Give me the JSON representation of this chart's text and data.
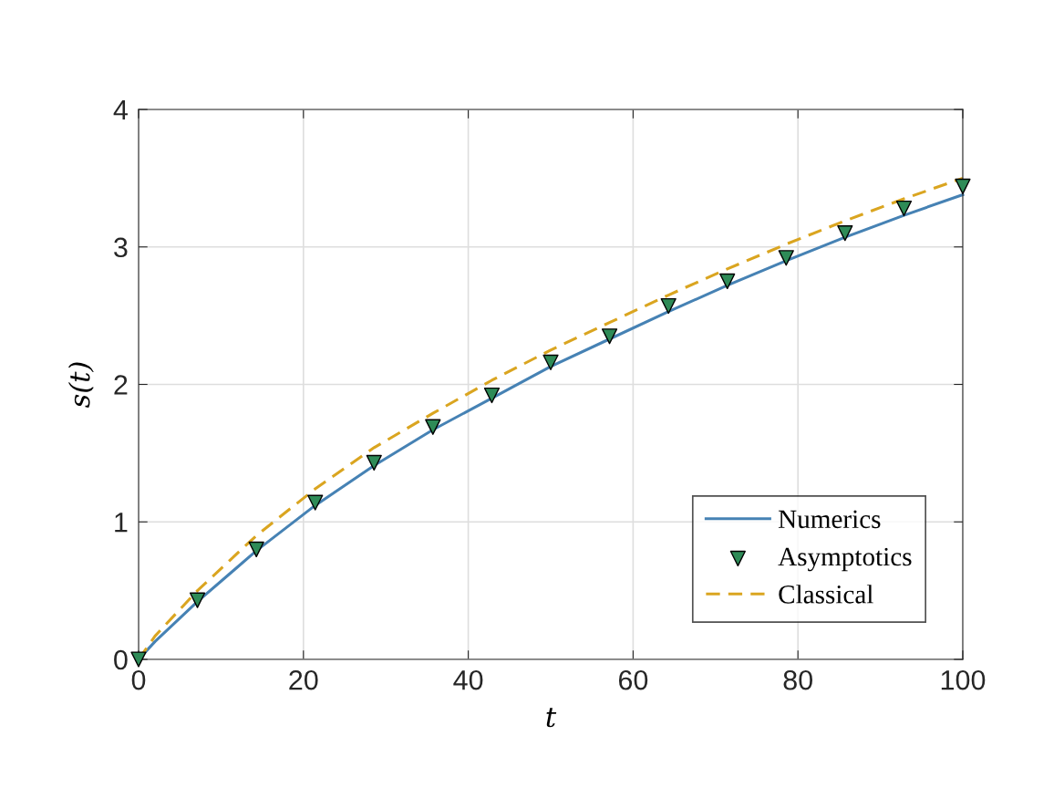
{
  "chart_data": {
    "type": "line",
    "xlabel": "t",
    "ylabel": "s(t)",
    "xlim": [
      0,
      100
    ],
    "ylim": [
      0,
      4
    ],
    "xticks": [
      0,
      20,
      40,
      60,
      80,
      100
    ],
    "yticks": [
      0,
      1,
      2,
      3,
      4
    ],
    "grid": true,
    "legend": "bottom right",
    "series": [
      {
        "name": "Numerics",
        "color": "#4682b4",
        "line_style": "solid",
        "marker": "none",
        "x": [
          0,
          2,
          7.14,
          14.29,
          21.43,
          28.57,
          35.71,
          42.86,
          50,
          57.14,
          64.29,
          71.43,
          78.57,
          85.71,
          92.86,
          100
        ],
        "values": [
          0,
          0.13,
          0.42,
          0.79,
          1.12,
          1.41,
          1.67,
          1.9,
          2.13,
          2.33,
          2.53,
          2.72,
          2.9,
          3.07,
          3.23,
          3.38
        ]
      },
      {
        "name": "Asymptotics",
        "type": "scatter",
        "color": "#2e8b57",
        "marker": "triangle",
        "x": [
          0,
          7.14,
          14.29,
          21.43,
          28.57,
          35.71,
          42.86,
          50,
          57.14,
          64.29,
          71.43,
          78.57,
          85.71,
          92.86,
          100
        ],
        "values": [
          0,
          0.43,
          0.8,
          1.14,
          1.43,
          1.69,
          1.92,
          2.16,
          2.35,
          2.57,
          2.75,
          2.92,
          3.1,
          3.28,
          3.44
        ]
      },
      {
        "name": "Classical",
        "color": "#daa520",
        "line_style": "dashed",
        "marker": "none",
        "x": [
          0,
          2,
          7.14,
          14.29,
          21.43,
          28.57,
          35.71,
          42.86,
          50,
          57.14,
          64.29,
          71.43,
          78.57,
          85.71,
          92.86,
          100
        ],
        "values": [
          0,
          0.17,
          0.5,
          0.9,
          1.24,
          1.54,
          1.79,
          2.03,
          2.25,
          2.45,
          2.65,
          2.84,
          3.02,
          3.19,
          3.35,
          3.5
        ]
      }
    ]
  }
}
